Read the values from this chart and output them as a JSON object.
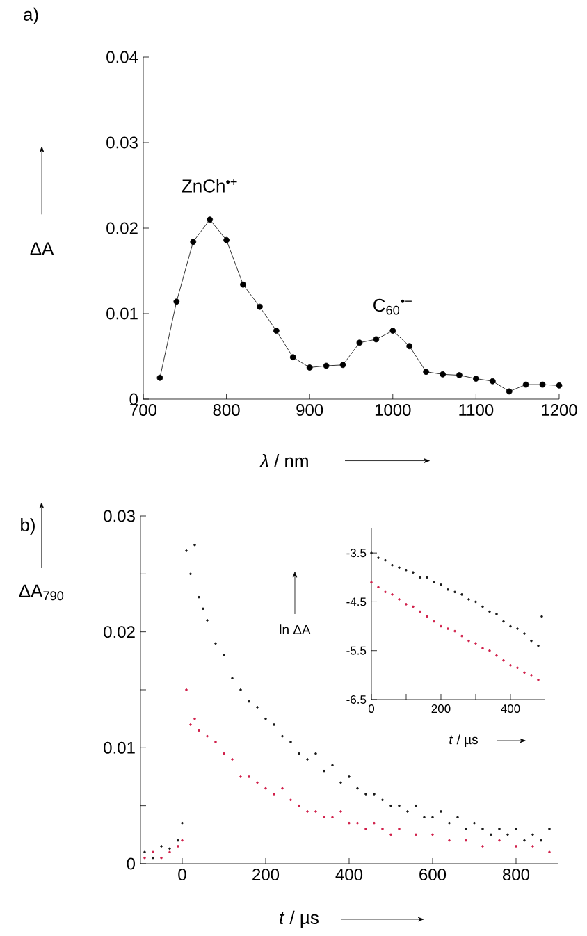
{
  "chart_data": [
    {
      "type": "line",
      "title": "a)",
      "xlabel": "*λ* / nm",
      "ylabel": "ΔA",
      "marker": "circle",
      "line_style": "solid",
      "color": "#000000",
      "x": [
        720,
        740,
        760,
        780,
        800,
        820,
        840,
        860,
        880,
        900,
        920,
        940,
        960,
        980,
        1000,
        1020,
        1040,
        1060,
        1080,
        1100,
        1120,
        1140,
        1160,
        1180,
        1200
      ],
      "values": [
        0.0025,
        0.0114,
        0.0184,
        0.021,
        0.0186,
        0.0134,
        0.0108,
        0.008,
        0.0049,
        0.0037,
        0.0039,
        0.004,
        0.0066,
        0.007,
        0.008,
        0.0062,
        0.0032,
        0.0029,
        0.0028,
        0.0024,
        0.0021,
        0.0009,
        0.0017,
        0.0017,
        0.0016
      ],
      "xlim": [
        700,
        1200
      ],
      "xticks": [
        700,
        800,
        900,
        1000,
        1100,
        1200
      ],
      "ylim": [
        0,
        0.04
      ],
      "yticks": [
        0,
        0.01,
        0.02,
        0.03,
        0.04
      ],
      "annotations": [
        {
          "text": "ZnCh$^{•+}$",
          "x": 780,
          "y": 0.021
        },
        {
          "text": "C$_{60}$$^{•−}$",
          "x": 1000,
          "y": 0.008
        }
      ]
    },
    {
      "type": "scatter",
      "title": "b)",
      "xlabel": "*t* / µs",
      "ylabel": "ΔA$_{790}$",
      "marker": "circle",
      "xlim": [
        -100,
        900
      ],
      "xticks": [
        0,
        200,
        400,
        600,
        800
      ],
      "ylim": [
        0,
        0.03
      ],
      "yticks": [
        0,
        {
          "value": 0.005,
          "label": null
        },
        0.01,
        {
          "value": 0.015,
          "label": null
        },
        0.02,
        {
          "value": 0.025,
          "label": null
        },
        0.03
      ],
      "series": [
        {
          "color": "#1a1a1a",
          "x": [
            -90,
            -70,
            -50,
            -30,
            -10,
            0,
            10,
            20,
            30,
            40,
            50,
            60,
            80,
            100,
            120,
            140,
            160,
            180,
            200,
            220,
            240,
            260,
            280,
            300,
            320,
            340,
            360,
            380,
            400,
            420,
            440,
            460,
            480,
            500,
            520,
            540,
            560,
            580,
            600,
            620,
            640,
            660,
            680,
            700,
            720,
            740,
            760,
            780,
            800,
            820,
            840,
            860,
            880
          ],
          "values": [
            0.001,
            0.0005,
            0.0015,
            0.0013,
            0.002,
            0.0035,
            0.027,
            0.025,
            0.0275,
            0.023,
            0.022,
            0.021,
            0.019,
            0.018,
            0.016,
            0.015,
            0.014,
            0.0135,
            0.0125,
            0.012,
            0.011,
            0.0105,
            0.0095,
            0.009,
            0.0095,
            0.008,
            0.0085,
            0.007,
            0.0075,
            0.0065,
            0.006,
            0.006,
            0.0055,
            0.005,
            0.005,
            0.0045,
            0.005,
            0.004,
            0.004,
            0.0045,
            0.0035,
            0.004,
            0.003,
            0.0035,
            0.003,
            0.0025,
            0.003,
            0.0025,
            0.003,
            0.002,
            0.0025,
            0.002,
            0.003
          ]
        },
        {
          "color": "#d0204a",
          "x": [
            -90,
            -70,
            -50,
            -30,
            -10,
            0,
            10,
            20,
            30,
            40,
            60,
            80,
            100,
            120,
            140,
            160,
            180,
            200,
            220,
            240,
            260,
            280,
            300,
            320,
            340,
            360,
            380,
            400,
            420,
            440,
            460,
            480,
            500,
            520,
            560,
            600,
            640,
            680,
            720,
            760,
            800,
            840,
            880
          ],
          "values": [
            0.0005,
            0.001,
            0.0005,
            0.001,
            0.0015,
            0.002,
            0.015,
            0.012,
            0.0125,
            0.0115,
            0.011,
            0.0105,
            0.0095,
            0.009,
            0.0075,
            0.0075,
            0.007,
            0.0065,
            0.006,
            0.0065,
            0.0055,
            0.005,
            0.0045,
            0.0045,
            0.004,
            0.004,
            0.0045,
            0.0035,
            0.0035,
            0.003,
            0.0035,
            0.003,
            0.0025,
            0.003,
            0.0025,
            0.0025,
            0.002,
            0.002,
            0.0015,
            0.002,
            0.0015,
            0.0015,
            0.001
          ]
        }
      ]
    },
    {
      "type": "scatter",
      "xlabel": "*t* / µs",
      "ylabel": "ln ΔA",
      "marker": "circle",
      "xlim": [
        0,
        500
      ],
      "xticks": [
        0,
        {
          "value": 100,
          "label": null
        },
        200,
        {
          "value": 300,
          "label": null
        },
        400
      ],
      "ylim": [
        -6.5,
        -3.0
      ],
      "yticks": [
        -6.5,
        -5.5,
        -4.5,
        -3.5
      ],
      "series": [
        {
          "color": "#1a1a1a",
          "x": [
            0,
            20,
            40,
            60,
            80,
            100,
            120,
            140,
            160,
            180,
            200,
            220,
            240,
            260,
            280,
            300,
            320,
            340,
            360,
            380,
            400,
            420,
            440,
            460,
            480,
            490
          ],
          "values": [
            -3.5,
            -3.6,
            -3.65,
            -3.75,
            -3.8,
            -3.85,
            -3.9,
            -4.0,
            -4.0,
            -4.1,
            -4.15,
            -4.25,
            -4.3,
            -4.35,
            -4.45,
            -4.5,
            -4.6,
            -4.7,
            -4.75,
            -4.9,
            -5.0,
            -5.05,
            -5.15,
            -5.3,
            -5.4,
            -4.8
          ]
        },
        {
          "color": "#d0204a",
          "x": [
            0,
            20,
            40,
            60,
            80,
            100,
            120,
            140,
            160,
            180,
            200,
            220,
            240,
            260,
            280,
            300,
            320,
            340,
            360,
            380,
            400,
            420,
            440,
            460,
            480
          ],
          "values": [
            -4.1,
            -4.2,
            -4.3,
            -4.35,
            -4.45,
            -4.55,
            -4.6,
            -4.7,
            -4.8,
            -4.9,
            -5.0,
            -5.05,
            -5.1,
            -5.2,
            -5.3,
            -5.35,
            -5.45,
            -5.5,
            -5.6,
            -5.7,
            -5.8,
            -5.85,
            -5.95,
            -6.0,
            -6.1
          ]
        }
      ]
    }
  ]
}
